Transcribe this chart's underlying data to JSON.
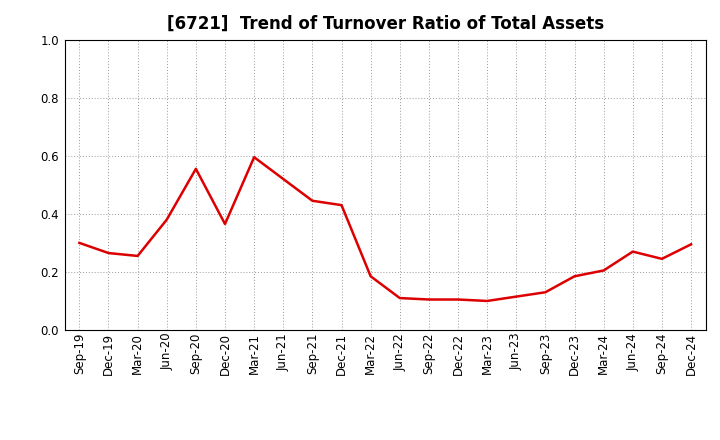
{
  "title": "[6721]  Trend of Turnover Ratio of Total Assets",
  "x_labels": [
    "Sep-19",
    "Dec-19",
    "Mar-20",
    "Jun-20",
    "Sep-20",
    "Dec-20",
    "Mar-21",
    "Jun-21",
    "Sep-21",
    "Dec-21",
    "Mar-22",
    "Jun-22",
    "Sep-22",
    "Dec-22",
    "Mar-23",
    "Jun-23",
    "Sep-23",
    "Dec-23",
    "Mar-24",
    "Jun-24",
    "Sep-24",
    "Dec-24"
  ],
  "y_values": [
    0.3,
    0.265,
    0.255,
    0.38,
    0.555,
    0.365,
    0.595,
    0.52,
    0.445,
    0.43,
    0.185,
    0.11,
    0.105,
    0.105,
    0.1,
    0.115,
    0.13,
    0.185,
    0.205,
    0.27,
    0.245,
    0.295
  ],
  "line_color": "#dd0000",
  "line_width": 1.8,
  "ylim": [
    0.0,
    1.0
  ],
  "yticks": [
    0.0,
    0.2,
    0.4,
    0.6,
    0.8,
    1.0
  ],
  "background_color": "#ffffff",
  "grid_color": "#999999",
  "title_fontsize": 12,
  "tick_fontsize": 8.5
}
